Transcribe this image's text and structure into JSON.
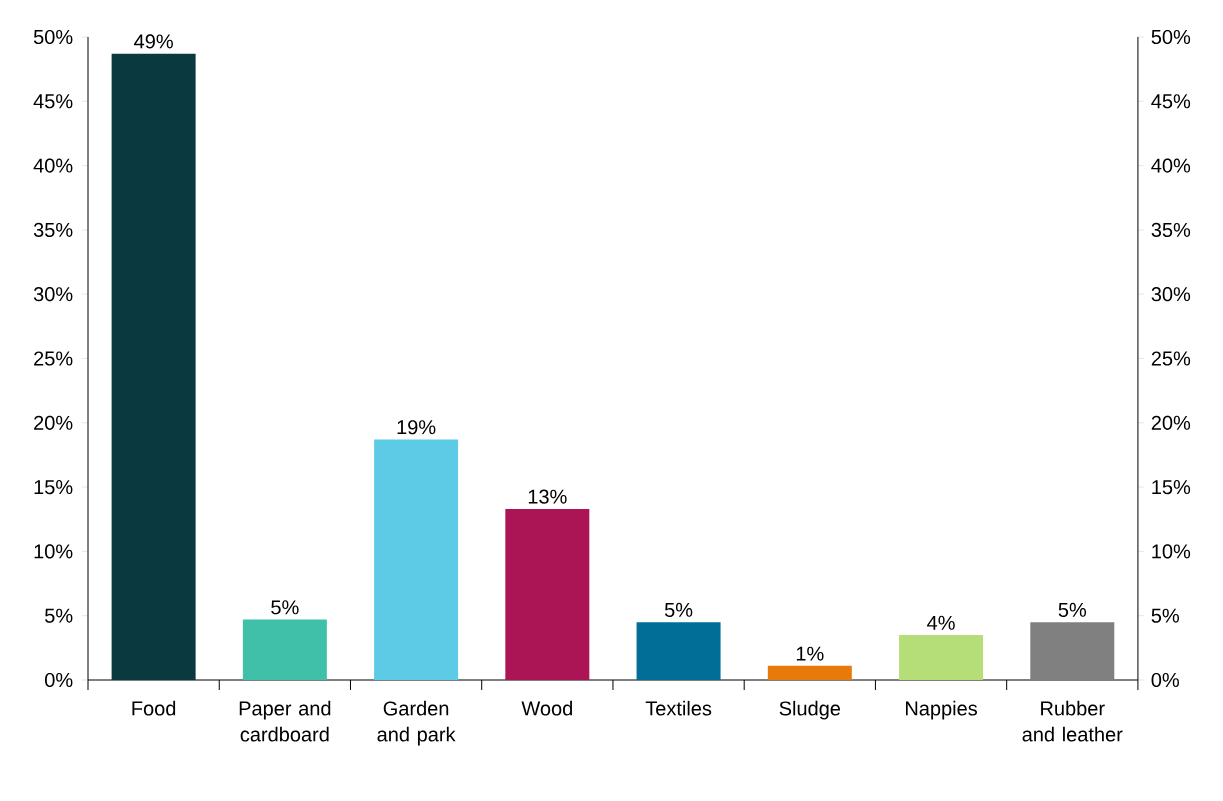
{
  "chart_data": {
    "type": "bar",
    "categories": [
      "Food",
      "Paper and cardboard",
      "Garden and park",
      "Wood",
      "Textiles",
      "Sludge",
      "Nappies",
      "Rubber and leather"
    ],
    "values": [
      48.7,
      4.7,
      18.7,
      13.3,
      4.5,
      1.1,
      3.5,
      4.5
    ],
    "colors": [
      "#0a3a40",
      "#40c0a8",
      "#5ecbe6",
      "#ab1556",
      "#006e96",
      "#e87a0a",
      "#b6de78",
      "#808080"
    ],
    "value_labels": [
      "49%",
      "5%",
      "19%",
      "13%",
      "5%",
      "1%",
      "4%",
      "5%"
    ],
    "ylim": [
      0,
      50
    ],
    "yticks": [
      {
        "value": 0,
        "label": "0%"
      },
      {
        "value": 5,
        "label": "5%"
      },
      {
        "value": 10,
        "label": "10%"
      },
      {
        "value": 15,
        "label": "15%"
      },
      {
        "value": 20,
        "label": "20%"
      },
      {
        "value": 25,
        "label": "25%"
      },
      {
        "value": 30,
        "label": "30%"
      },
      {
        "value": 35,
        "label": "35%"
      },
      {
        "value": 40,
        "label": "40%"
      },
      {
        "value": 45,
        "label": "45%"
      },
      {
        "value": 50,
        "label": "50%"
      }
    ],
    "y2lim": [
      0,
      50
    ],
    "y2ticks": [
      {
        "value": 0,
        "label": "0%"
      },
      {
        "value": 5,
        "label": "5%"
      },
      {
        "value": 10,
        "label": "10%"
      },
      {
        "value": 15,
        "label": "15%"
      },
      {
        "value": 20,
        "label": "20%"
      },
      {
        "value": 25,
        "label": "25%"
      },
      {
        "value": 30,
        "label": "30%"
      },
      {
        "value": 35,
        "label": "35%"
      },
      {
        "value": 40,
        "label": "40%"
      },
      {
        "value": 45,
        "label": "45%"
      },
      {
        "value": 50,
        "label": "50%"
      }
    ],
    "grid": false
  }
}
